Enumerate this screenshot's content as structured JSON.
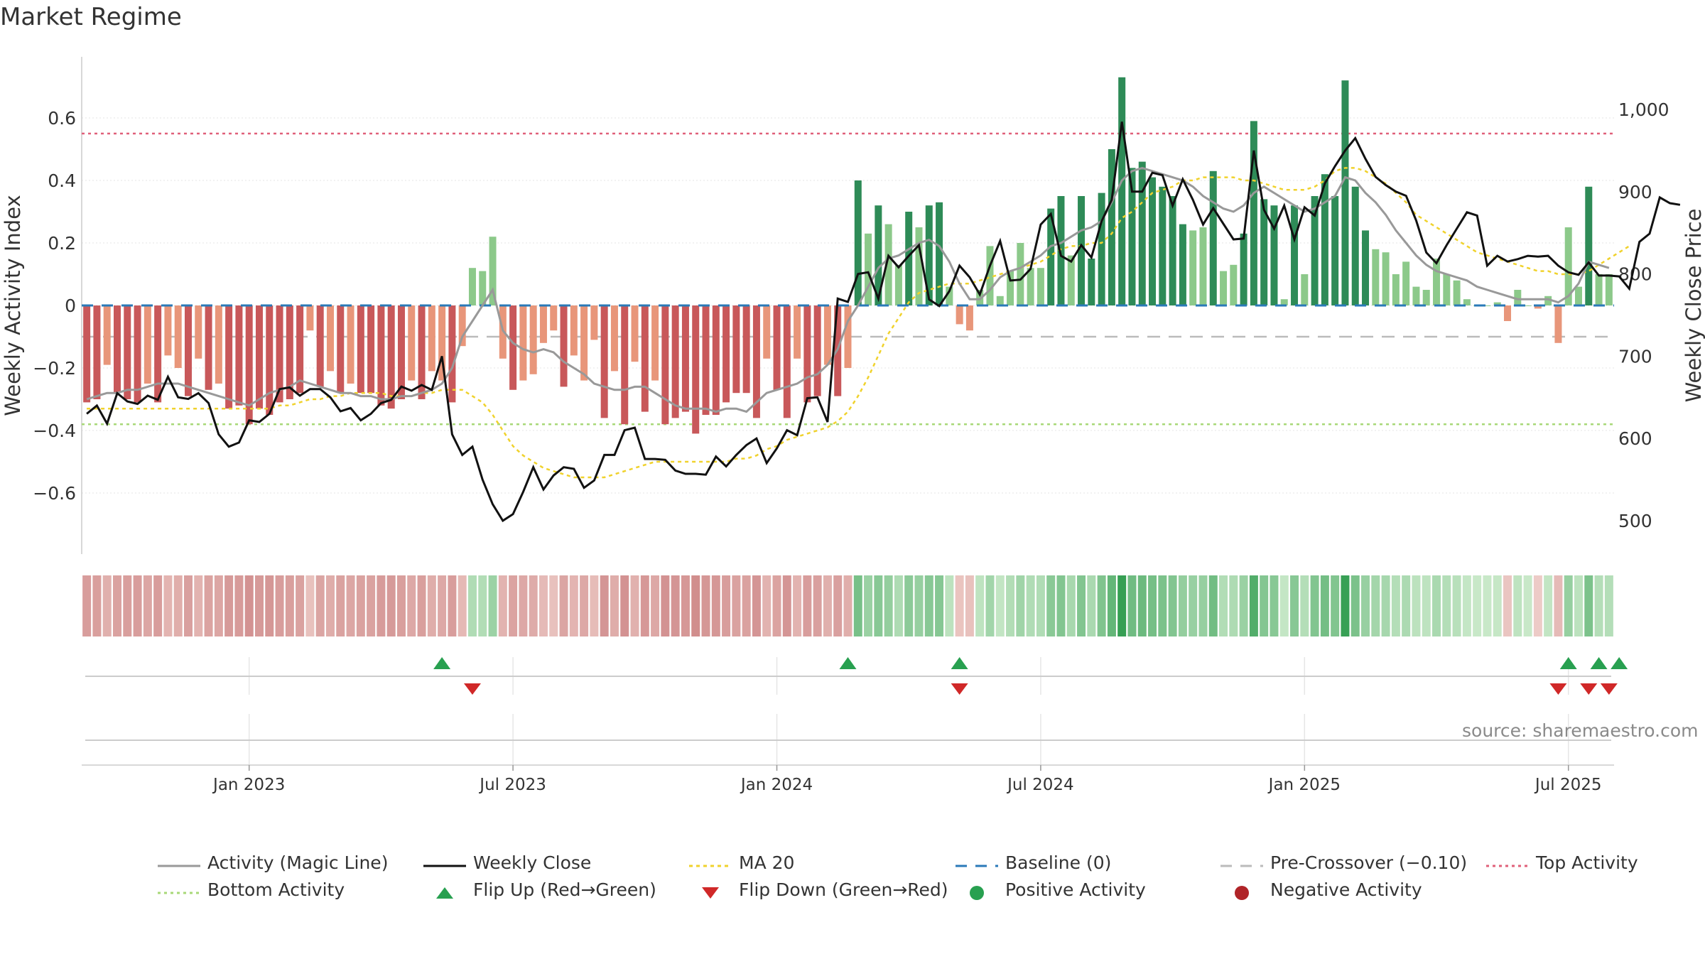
{
  "title": "Market Regime",
  "source_note": "source: sharemaestro.com",
  "colors": {
    "red_strong": "#c8585a",
    "red_light": "#e8967a",
    "green_strong": "#2e8b57",
    "green_light": "#8cc98a",
    "magic_line": "#999999",
    "weekly_close": "#111111",
    "ma20": "#f0d22c",
    "baseline": "#2a7ab8",
    "pre_crossover": "#bbbbbb",
    "top_activity": "#e0607a",
    "bottom_activity": "#a8d878",
    "flip_up": "#28a050",
    "flip_down": "#d02828"
  },
  "legend": [
    {
      "label": "Activity (Magic Line)",
      "key": "magic"
    },
    {
      "label": "Weekly Close",
      "key": "close"
    },
    {
      "label": "MA 20",
      "key": "ma20"
    },
    {
      "label": "Baseline (0)",
      "key": "baseline"
    },
    {
      "label": "Pre-Crossover (−0.10)",
      "key": "pre"
    },
    {
      "label": "Top Activity",
      "key": "top"
    },
    {
      "label": "Bottom Activity",
      "key": "bottom"
    },
    {
      "label": "Flip Up (Red→Green)",
      "key": "flipup"
    },
    {
      "label": "Flip Down (Green→Red)",
      "key": "flipdown"
    },
    {
      "label": "Positive Activity",
      "key": "pos"
    },
    {
      "label": "Negative Activity",
      "key": "neg"
    }
  ],
  "chart_data": {
    "type": "bar",
    "ylabel": "Weekly Activity Index",
    "ylabel_right": "Weekly Close Price",
    "ylim": [
      -0.8,
      0.75
    ],
    "ylim_right": [
      450,
      1050
    ],
    "yticks": [
      {
        "v": 0.6,
        "label": "0.6"
      },
      {
        "v": 0.4,
        "label": "0.4"
      },
      {
        "v": 0.2,
        "label": "0.2"
      },
      {
        "v": 0,
        "label": "0"
      },
      {
        "v": -0.2,
        "label": "−0.2"
      },
      {
        "v": -0.4,
        "label": "−0.4"
      },
      {
        "v": -0.6,
        "label": "−0.6"
      }
    ],
    "yticks_right": [
      {
        "v": 1000,
        "label": "1,000"
      },
      {
        "v": 900,
        "label": "900"
      },
      {
        "v": 800,
        "label": "800"
      },
      {
        "v": 700,
        "label": "700"
      },
      {
        "v": 600,
        "label": "600"
      },
      {
        "v": 500,
        "label": "500"
      }
    ],
    "xticks": [
      {
        "index": 16,
        "label": "Jan 2023"
      },
      {
        "index": 42,
        "label": "Jul 2023"
      },
      {
        "index": 68,
        "label": "Jan 2024"
      },
      {
        "index": 94,
        "label": "Jul 2024"
      },
      {
        "index": 120,
        "label": "Jan 2025"
      },
      {
        "index": 146,
        "label": "Jul 2025"
      }
    ],
    "reference_lines": {
      "top_activity": 0.55,
      "bottom_activity": -0.38,
      "pre_crossover": -0.1,
      "baseline": 0
    },
    "activity": [
      -0.31,
      -0.3,
      -0.19,
      -0.28,
      -0.3,
      -0.31,
      -0.25,
      -0.31,
      -0.16,
      -0.2,
      -0.29,
      -0.17,
      -0.27,
      -0.25,
      -0.33,
      -0.32,
      -0.38,
      -0.33,
      -0.35,
      -0.31,
      -0.3,
      -0.28,
      -0.08,
      -0.26,
      -0.21,
      -0.28,
      -0.25,
      -0.28,
      -0.28,
      -0.32,
      -0.33,
      -0.3,
      -0.24,
      -0.3,
      -0.21,
      -0.24,
      -0.31,
      -0.13,
      0.12,
      0.11,
      0.22,
      -0.17,
      -0.27,
      -0.24,
      -0.22,
      -0.12,
      -0.08,
      -0.26,
      -0.16,
      -0.24,
      -0.11,
      -0.36,
      -0.21,
      -0.38,
      -0.18,
      -0.34,
      -0.24,
      -0.38,
      -0.36,
      -0.34,
      -0.41,
      -0.35,
      -0.35,
      -0.31,
      -0.28,
      -0.28,
      -0.36,
      -0.17,
      -0.27,
      -0.36,
      -0.17,
      -0.31,
      -0.29,
      -0.19,
      -0.29,
      -0.2,
      0.4,
      0.23,
      0.32,
      0.26,
      0.13,
      0.3,
      0.25,
      0.32,
      0.33,
      0.06,
      -0.06,
      -0.08,
      0.05,
      0.19,
      0.03,
      0.11,
      0.2,
      0.12,
      0.12,
      0.31,
      0.35,
      0.16,
      0.35,
      0.15,
      0.36,
      0.5,
      0.73,
      0.44,
      0.46,
      0.41,
      0.38,
      0.35,
      0.26,
      0.24,
      0.25,
      0.43,
      0.11,
      0.13,
      0.23,
      0.59,
      0.34,
      0.32,
      0.02,
      0.32,
      0.1,
      0.35,
      0.42,
      0.35,
      0.72,
      0.38,
      0.24,
      0.18,
      0.17,
      0.1,
      0.14,
      0.06,
      0.05,
      0.15,
      0.1,
      0.08,
      0.02,
      0.0,
      0.0,
      0.01,
      -0.05,
      0.05,
      0.0,
      -0.01,
      0.03,
      -0.12,
      0.25,
      0.06,
      0.38,
      0.1,
      0.1
    ],
    "series": [
      {
        "name": "Activity (Magic Line)",
        "values": [
          -0.3,
          -0.29,
          -0.28,
          -0.28,
          -0.27,
          -0.27,
          -0.26,
          -0.25,
          -0.25,
          -0.25,
          -0.26,
          -0.27,
          -0.28,
          -0.29,
          -0.3,
          -0.31,
          -0.32,
          -0.3,
          -0.28,
          -0.27,
          -0.26,
          -0.24,
          -0.25,
          -0.26,
          -0.27,
          -0.28,
          -0.28,
          -0.29,
          -0.29,
          -0.3,
          -0.3,
          -0.29,
          -0.29,
          -0.28,
          -0.27,
          -0.25,
          -0.2,
          -0.1,
          -0.05,
          0.0,
          0.05,
          -0.08,
          -0.12,
          -0.14,
          -0.15,
          -0.14,
          -0.15,
          -0.18,
          -0.2,
          -0.22,
          -0.25,
          -0.26,
          -0.27,
          -0.27,
          -0.26,
          -0.26,
          -0.28,
          -0.3,
          -0.32,
          -0.33,
          -0.33,
          -0.33,
          -0.34,
          -0.33,
          -0.33,
          -0.34,
          -0.31,
          -0.28,
          -0.27,
          -0.26,
          -0.25,
          -0.23,
          -0.22,
          -0.19,
          -0.14,
          -0.05,
          0.0,
          0.06,
          0.12,
          0.15,
          0.16,
          0.18,
          0.2,
          0.21,
          0.19,
          0.14,
          0.07,
          0.02,
          0.02,
          0.05,
          0.09,
          0.11,
          0.12,
          0.14,
          0.16,
          0.19,
          0.2,
          0.22,
          0.24,
          0.25,
          0.27,
          0.33,
          0.4,
          0.43,
          0.44,
          0.43,
          0.42,
          0.41,
          0.4,
          0.38,
          0.35,
          0.33,
          0.31,
          0.3,
          0.32,
          0.36,
          0.38,
          0.36,
          0.34,
          0.32,
          0.3,
          0.31,
          0.33,
          0.35,
          0.41,
          0.4,
          0.36,
          0.33,
          0.29,
          0.24,
          0.2,
          0.16,
          0.13,
          0.11,
          0.1,
          0.09,
          0.08,
          0.06,
          0.05,
          0.04,
          0.03,
          0.02,
          0.02,
          0.02,
          0.02,
          0.01,
          0.03,
          0.07,
          0.14,
          0.13,
          0.12
        ]
      },
      {
        "name": "Weekly Close",
        "values": [
          630,
          640,
          618,
          655,
          645,
          642,
          652,
          647,
          675,
          650,
          648,
          655,
          643,
          605,
          590,
          595,
          622,
          620,
          630,
          660,
          662,
          652,
          660,
          660,
          650,
          633,
          637,
          622,
          630,
          643,
          647,
          663,
          658,
          665,
          659,
          700,
          605,
          580,
          590,
          550,
          520,
          500,
          508,
          535,
          565,
          538,
          555,
          565,
          563,
          540,
          549,
          580,
          580,
          610,
          613,
          575,
          575,
          574,
          561,
          557,
          557,
          556,
          578,
          566,
          580,
          592,
          600,
          570,
          588,
          610,
          604,
          649,
          650,
          620,
          770,
          766,
          800,
          802,
          770,
          822,
          808,
          822,
          835,
          769,
          761,
          779,
          810,
          796,
          775,
          810,
          840,
          792,
          793,
          806,
          860,
          873,
          822,
          815,
          835,
          820,
          864,
          890,
          985,
          900,
          900,
          923,
          920,
          883,
          915,
          890,
          860,
          880,
          861,
          842,
          843,
          950,
          878,
          855,
          883,
          842,
          881,
          871,
          910,
          931,
          950,
          965,
          940,
          918,
          908,
          900,
          895,
          865,
          826,
          813,
          835,
          855,
          875,
          871,
          810,
          822,
          815,
          818,
          822,
          821,
          822,
          810,
          802,
          799,
          814,
          798,
          798,
          797,
          782,
          839,
          849,
          893,
          886,
          884
        ]
      },
      {
        "name": "MA 20",
        "values": [
          -0.33,
          -0.33,
          -0.33,
          -0.33,
          -0.33,
          -0.33,
          -0.33,
          -0.33,
          -0.33,
          -0.33,
          -0.33,
          -0.33,
          -0.33,
          -0.33,
          -0.33,
          -0.33,
          -0.33,
          -0.33,
          -0.33,
          -0.32,
          -0.32,
          -0.31,
          -0.3,
          -0.3,
          -0.29,
          -0.29,
          -0.28,
          -0.28,
          -0.28,
          -0.28,
          -0.29,
          -0.29,
          -0.29,
          -0.28,
          -0.28,
          -0.27,
          -0.27,
          -0.27,
          -0.29,
          -0.31,
          -0.35,
          -0.4,
          -0.45,
          -0.48,
          -0.5,
          -0.52,
          -0.53,
          -0.54,
          -0.55,
          -0.55,
          -0.55,
          -0.55,
          -0.54,
          -0.53,
          -0.52,
          -0.51,
          -0.5,
          -0.5,
          -0.5,
          -0.5,
          -0.5,
          -0.5,
          -0.5,
          -0.5,
          -0.49,
          -0.49,
          -0.48,
          -0.46,
          -0.45,
          -0.43,
          -0.42,
          -0.41,
          -0.4,
          -0.39,
          -0.37,
          -0.34,
          -0.29,
          -0.23,
          -0.16,
          -0.09,
          -0.04,
          0.01,
          0.04,
          0.05,
          0.06,
          0.07,
          0.07,
          0.07,
          0.08,
          0.09,
          0.1,
          0.11,
          0.12,
          0.13,
          0.14,
          0.16,
          0.18,
          0.19,
          0.19,
          0.2,
          0.2,
          0.23,
          0.28,
          0.3,
          0.33,
          0.36,
          0.37,
          0.38,
          0.4,
          0.4,
          0.41,
          0.41,
          0.41,
          0.41,
          0.4,
          0.4,
          0.39,
          0.38,
          0.37,
          0.37,
          0.37,
          0.38,
          0.4,
          0.43,
          0.44,
          0.44,
          0.43,
          0.41,
          0.39,
          0.36,
          0.33,
          0.29,
          0.27,
          0.25,
          0.23,
          0.21,
          0.19,
          0.17,
          0.16,
          0.15,
          0.14,
          0.13,
          0.12,
          0.11,
          0.11,
          0.1,
          0.1,
          0.1,
          0.11,
          0.13,
          0.15,
          0.17,
          0.19
        ]
      }
    ],
    "flip_up_indices": [
      35,
      75,
      86,
      146,
      149,
      151
    ],
    "flip_down_indices": [
      38,
      86,
      145,
      148,
      150
    ]
  }
}
